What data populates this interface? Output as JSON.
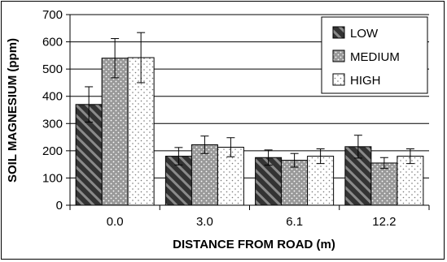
{
  "chart_data": {
    "type": "bar",
    "title": "",
    "xlabel": "DISTANCE FROM ROAD (m)",
    "ylabel": "SOIL MAGNESIUM (ppm)",
    "categories": [
      "0.0",
      "3.0",
      "6.1",
      "12.2"
    ],
    "ylim": [
      0,
      700
    ],
    "yticks": [
      0,
      100,
      200,
      300,
      400,
      500,
      600,
      700
    ],
    "grid": true,
    "legend_position": "top-right",
    "series": [
      {
        "name": "LOW",
        "pattern": "diagonal-hatch",
        "color": "#333333",
        "values": [
          370,
          180,
          175,
          215
        ],
        "errors": [
          65,
          32,
          28,
          42
        ]
      },
      {
        "name": "MEDIUM",
        "pattern": "dots-on-gray",
        "color": "#999999",
        "values": [
          540,
          222,
          165,
          155
        ],
        "errors": [
          72,
          32,
          25,
          20
        ]
      },
      {
        "name": "HIGH",
        "pattern": "dots-on-white",
        "color": "#ffffff",
        "values": [
          542,
          213,
          180,
          180
        ],
        "errors": [
          92,
          35,
          27,
          27
        ]
      }
    ]
  }
}
